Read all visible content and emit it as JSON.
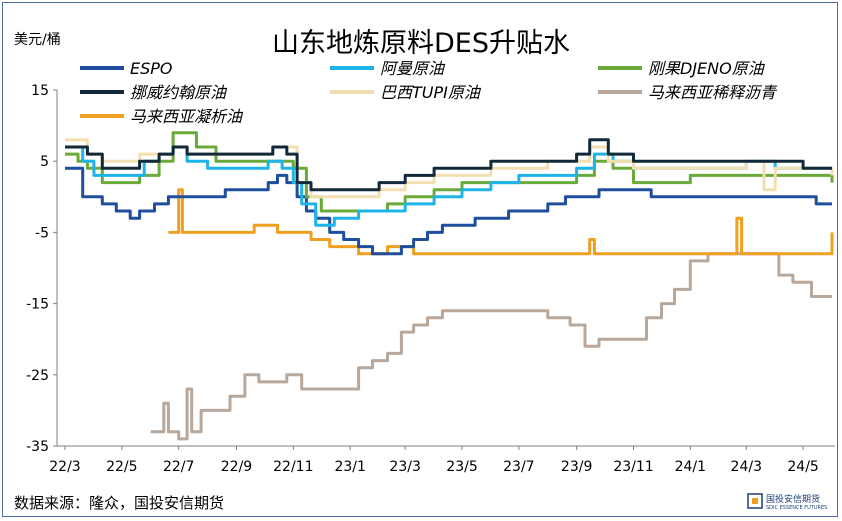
{
  "chart_data": {
    "type": "line",
    "title": "山东地炼原料DES升贴水",
    "ylabel": "美元/桶",
    "ylim": [
      -35,
      15
    ],
    "yticks": [
      15,
      5,
      -5,
      -15,
      -25,
      -35
    ],
    "xlim": [
      "2022-03",
      "2024-06"
    ],
    "xticks": [
      "22/3",
      "22/5",
      "22/7",
      "22/9",
      "22/11",
      "23/1",
      "23/3",
      "23/5",
      "23/7",
      "23/9",
      "23/11",
      "24/1",
      "24/3",
      "24/5"
    ],
    "legend_position": "top",
    "source": "数据来源：隆众，国投安信期货",
    "series": [
      {
        "name": "ESPO",
        "color": "#1f4e9e",
        "points": [
          [
            "2022-03-01",
            4
          ],
          [
            "2022-03-10",
            4
          ],
          [
            "2022-03-20",
            0
          ],
          [
            "2022-04-10",
            -1
          ],
          [
            "2022-04-25",
            -2
          ],
          [
            "2022-05-10",
            -3
          ],
          [
            "2022-05-20",
            -2
          ],
          [
            "2022-06-05",
            -1
          ],
          [
            "2022-06-20",
            0
          ],
          [
            "2022-07-10",
            0
          ],
          [
            "2022-08-01",
            0
          ],
          [
            "2022-08-20",
            1
          ],
          [
            "2022-09-15",
            1
          ],
          [
            "2022-10-05",
            2
          ],
          [
            "2022-10-15",
            3
          ],
          [
            "2022-10-25",
            2
          ],
          [
            "2022-11-05",
            0
          ],
          [
            "2022-11-15",
            -2
          ],
          [
            "2022-11-25",
            -3
          ],
          [
            "2022-12-10",
            -5
          ],
          [
            "2022-12-25",
            -6
          ],
          [
            "2023-01-10",
            -7
          ],
          [
            "2023-01-25",
            -8
          ],
          [
            "2023-02-10",
            -8
          ],
          [
            "2023-02-25",
            -7
          ],
          [
            "2023-03-10",
            -6
          ],
          [
            "2023-03-25",
            -5
          ],
          [
            "2023-04-10",
            -4
          ],
          [
            "2023-04-25",
            -4
          ],
          [
            "2023-05-15",
            -3
          ],
          [
            "2023-06-01",
            -3
          ],
          [
            "2023-06-20",
            -2
          ],
          [
            "2023-07-10",
            -2
          ],
          [
            "2023-08-01",
            -1
          ],
          [
            "2023-08-20",
            0
          ],
          [
            "2023-09-10",
            0
          ],
          [
            "2023-09-25",
            1
          ],
          [
            "2023-10-15",
            1
          ],
          [
            "2023-11-01",
            1
          ],
          [
            "2023-11-20",
            0
          ],
          [
            "2023-12-15",
            0
          ],
          [
            "2024-01-15",
            0
          ],
          [
            "2024-02-15",
            0
          ],
          [
            "2024-03-15",
            0
          ],
          [
            "2024-04-15",
            0
          ],
          [
            "2024-05-15",
            -1
          ],
          [
            "2024-06-01",
            -1
          ]
        ]
      },
      {
        "name": "阿曼原油",
        "color": "#1fb4e8",
        "points": [
          [
            "2022-03-01",
            7
          ],
          [
            "2022-03-15",
            7
          ],
          [
            "2022-03-20",
            5
          ],
          [
            "2022-04-01",
            3
          ],
          [
            "2022-04-20",
            3
          ],
          [
            "2022-05-10",
            3
          ],
          [
            "2022-05-25",
            5
          ],
          [
            "2022-06-10",
            6
          ],
          [
            "2022-06-25",
            7
          ],
          [
            "2022-07-10",
            5
          ],
          [
            "2022-08-01",
            4
          ],
          [
            "2022-08-25",
            4
          ],
          [
            "2022-09-15",
            4
          ],
          [
            "2022-10-05",
            5
          ],
          [
            "2022-10-20",
            4
          ],
          [
            "2022-11-01",
            2
          ],
          [
            "2022-11-10",
            -1
          ],
          [
            "2022-11-25",
            -4
          ],
          [
            "2022-12-15",
            -3
          ],
          [
            "2023-01-10",
            -2
          ],
          [
            "2023-02-01",
            -2
          ],
          [
            "2023-03-01",
            -1
          ],
          [
            "2023-04-01",
            0
          ],
          [
            "2023-05-01",
            1
          ],
          [
            "2023-06-01",
            2
          ],
          [
            "2023-07-01",
            3
          ],
          [
            "2023-08-01",
            3
          ],
          [
            "2023-09-01",
            4
          ],
          [
            "2023-09-20",
            6
          ],
          [
            "2023-10-10",
            5
          ],
          [
            "2023-11-01",
            4
          ],
          [
            "2023-12-01",
            4
          ],
          [
            "2024-01-01",
            4
          ],
          [
            "2024-02-01",
            4
          ],
          [
            "2024-03-01",
            5
          ],
          [
            "2024-04-01",
            4
          ],
          [
            "2024-05-01",
            4
          ],
          [
            "2024-06-01",
            4
          ]
        ]
      },
      {
        "name": "刚果DJENO原油",
        "color": "#6aaa3a",
        "points": [
          [
            "2022-03-01",
            6
          ],
          [
            "2022-03-15",
            5
          ],
          [
            "2022-03-25",
            4
          ],
          [
            "2022-04-10",
            2
          ],
          [
            "2022-05-01",
            2
          ],
          [
            "2022-05-20",
            3
          ],
          [
            "2022-06-10",
            5
          ],
          [
            "2022-06-25",
            9
          ],
          [
            "2022-07-10",
            9
          ],
          [
            "2022-07-20",
            7
          ],
          [
            "2022-08-10",
            5
          ],
          [
            "2022-09-01",
            5
          ],
          [
            "2022-09-20",
            5
          ],
          [
            "2022-10-10",
            5
          ],
          [
            "2022-11-01",
            4
          ],
          [
            "2022-11-15",
            0
          ],
          [
            "2022-12-01",
            -2
          ],
          [
            "2022-12-20",
            -2
          ],
          [
            "2023-01-15",
            -2
          ],
          [
            "2023-02-10",
            -1
          ],
          [
            "2023-03-01",
            0
          ],
          [
            "2023-04-01",
            1
          ],
          [
            "2023-05-01",
            2
          ],
          [
            "2023-06-01",
            2
          ],
          [
            "2023-07-01",
            2
          ],
          [
            "2023-08-01",
            2
          ],
          [
            "2023-09-01",
            3
          ],
          [
            "2023-09-20",
            5
          ],
          [
            "2023-10-10",
            4
          ],
          [
            "2023-11-01",
            2
          ],
          [
            "2023-12-01",
            2
          ],
          [
            "2024-01-01",
            3
          ],
          [
            "2024-02-01",
            3
          ],
          [
            "2024-03-01",
            3
          ],
          [
            "2024-04-01",
            3
          ],
          [
            "2024-05-01",
            3
          ],
          [
            "2024-06-01",
            2
          ]
        ]
      },
      {
        "name": "挪威约翰原油",
        "color": "#12293a",
        "points": [
          [
            "2022-03-01",
            7
          ],
          [
            "2022-03-15",
            7
          ],
          [
            "2022-03-25",
            6
          ],
          [
            "2022-04-10",
            4
          ],
          [
            "2022-05-01",
            4
          ],
          [
            "2022-05-20",
            5
          ],
          [
            "2022-06-10",
            6
          ],
          [
            "2022-06-25",
            7
          ],
          [
            "2022-07-10",
            6
          ],
          [
            "2022-08-10",
            6
          ],
          [
            "2022-09-01",
            6
          ],
          [
            "2022-09-20",
            6
          ],
          [
            "2022-10-10",
            7
          ],
          [
            "2022-10-25",
            6
          ],
          [
            "2022-11-05",
            2
          ],
          [
            "2022-11-20",
            1
          ],
          [
            "2022-12-10",
            1
          ],
          [
            "2023-01-10",
            1
          ],
          [
            "2023-02-01",
            2
          ],
          [
            "2023-03-01",
            3
          ],
          [
            "2023-04-01",
            4
          ],
          [
            "2023-05-01",
            4
          ],
          [
            "2023-06-01",
            5
          ],
          [
            "2023-07-01",
            5
          ],
          [
            "2023-08-01",
            5
          ],
          [
            "2023-09-01",
            6
          ],
          [
            "2023-09-15",
            8
          ],
          [
            "2023-10-05",
            6
          ],
          [
            "2023-11-01",
            5
          ],
          [
            "2023-12-01",
            5
          ],
          [
            "2024-01-01",
            5
          ],
          [
            "2024-02-01",
            5
          ],
          [
            "2024-03-01",
            5
          ],
          [
            "2024-04-01",
            5
          ],
          [
            "2024-05-01",
            4
          ],
          [
            "2024-06-01",
            4
          ]
        ]
      },
      {
        "name": "巴西TUPI原油",
        "color": "#f3dfb2",
        "points": [
          [
            "2022-03-01",
            8
          ],
          [
            "2022-03-15",
            8
          ],
          [
            "2022-03-25",
            6
          ],
          [
            "2022-04-10",
            5
          ],
          [
            "2022-05-01",
            5
          ],
          [
            "2022-05-20",
            6
          ],
          [
            "2022-06-10",
            6
          ],
          [
            "2022-06-25",
            7
          ],
          [
            "2022-07-10",
            6
          ],
          [
            "2022-08-10",
            6
          ],
          [
            "2022-09-01",
            6
          ],
          [
            "2022-09-20",
            6
          ],
          [
            "2022-10-10",
            7
          ],
          [
            "2022-10-25",
            7
          ],
          [
            "2022-11-05",
            2
          ],
          [
            "2022-11-20",
            0
          ],
          [
            "2022-12-10",
            0
          ],
          [
            "2023-01-10",
            0
          ],
          [
            "2023-02-01",
            1
          ],
          [
            "2023-03-01",
            2
          ],
          [
            "2023-04-01",
            3
          ],
          [
            "2023-05-01",
            3
          ],
          [
            "2023-06-01",
            4
          ],
          [
            "2023-07-01",
            4
          ],
          [
            "2023-08-01",
            5
          ],
          [
            "2023-09-01",
            5
          ],
          [
            "2023-09-15",
            7
          ],
          [
            "2023-10-05",
            5
          ],
          [
            "2023-11-01",
            4
          ],
          [
            "2023-12-01",
            4
          ],
          [
            "2024-01-01",
            4
          ],
          [
            "2024-02-01",
            4
          ],
          [
            "2024-03-01",
            5
          ],
          [
            "2024-03-20",
            1
          ],
          [
            "2024-04-01",
            4
          ],
          [
            "2024-05-01",
            4
          ],
          [
            "2024-06-01",
            3
          ]
        ]
      },
      {
        "name": "马来西亚稀释沥青",
        "color": "#b8a89c",
        "points": [
          [
            "2022-06-01",
            -33
          ],
          [
            "2022-06-10",
            -33
          ],
          [
            "2022-06-15",
            -29
          ],
          [
            "2022-06-20",
            -33
          ],
          [
            "2022-06-25",
            -33
          ],
          [
            "2022-07-01",
            -34
          ],
          [
            "2022-07-10",
            -27
          ],
          [
            "2022-07-15",
            -33
          ],
          [
            "2022-07-25",
            -30
          ],
          [
            "2022-08-10",
            -30
          ],
          [
            "2022-08-25",
            -28
          ],
          [
            "2022-09-10",
            -25
          ],
          [
            "2022-09-25",
            -26
          ],
          [
            "2022-10-10",
            -26
          ],
          [
            "2022-10-25",
            -25
          ],
          [
            "2022-11-10",
            -27
          ],
          [
            "2022-11-25",
            -27
          ],
          [
            "2022-12-10",
            -27
          ],
          [
            "2022-12-25",
            -27
          ],
          [
            "2023-01-10",
            -24
          ],
          [
            "2023-01-25",
            -23
          ],
          [
            "2023-02-10",
            -22
          ],
          [
            "2023-02-25",
            -19
          ],
          [
            "2023-03-10",
            -18
          ],
          [
            "2023-03-25",
            -17
          ],
          [
            "2023-04-10",
            -16
          ],
          [
            "2023-05-01",
            -16
          ],
          [
            "2023-06-01",
            -16
          ],
          [
            "2023-07-01",
            -16
          ],
          [
            "2023-08-01",
            -17
          ],
          [
            "2023-08-25",
            -18
          ],
          [
            "2023-09-10",
            -21
          ],
          [
            "2023-09-25",
            -20
          ],
          [
            "2023-10-15",
            -20
          ],
          [
            "2023-11-01",
            -20
          ],
          [
            "2023-11-15",
            -17
          ],
          [
            "2023-12-01",
            -15
          ],
          [
            "2023-12-15",
            -13
          ],
          [
            "2024-01-01",
            -9
          ],
          [
            "2024-01-20",
            -8
          ],
          [
            "2024-02-10",
            -8
          ],
          [
            "2024-03-01",
            -8
          ],
          [
            "2024-03-20",
            -8
          ],
          [
            "2024-04-05",
            -11
          ],
          [
            "2024-04-20",
            -12
          ],
          [
            "2024-05-10",
            -14
          ],
          [
            "2024-06-01",
            -14
          ]
        ]
      },
      {
        "name": "马来西亚凝析油",
        "color": "#f0a020",
        "points": [
          [
            "2022-06-20",
            -5
          ],
          [
            "2022-06-25",
            -5
          ],
          [
            "2022-07-01",
            1
          ],
          [
            "2022-07-05",
            -5
          ],
          [
            "2022-08-01",
            -5
          ],
          [
            "2022-09-01",
            -5
          ],
          [
            "2022-09-20",
            -4
          ],
          [
            "2022-10-15",
            -5
          ],
          [
            "2022-11-01",
            -5
          ],
          [
            "2022-11-20",
            -6
          ],
          [
            "2022-12-10",
            -7
          ],
          [
            "2022-12-25",
            -7
          ],
          [
            "2023-01-10",
            -8
          ],
          [
            "2023-01-25",
            -8
          ],
          [
            "2023-02-10",
            -7
          ],
          [
            "2023-02-25",
            -7
          ],
          [
            "2023-03-10",
            -8
          ],
          [
            "2023-04-01",
            -8
          ],
          [
            "2023-05-01",
            -8
          ],
          [
            "2023-06-01",
            -8
          ],
          [
            "2023-07-01",
            -8
          ],
          [
            "2023-08-01",
            -8
          ],
          [
            "2023-09-01",
            -8
          ],
          [
            "2023-09-15",
            -6
          ],
          [
            "2023-09-20",
            -8
          ],
          [
            "2023-10-15",
            -8
          ],
          [
            "2023-11-01",
            -8
          ],
          [
            "2023-12-01",
            -8
          ],
          [
            "2024-01-01",
            -8
          ],
          [
            "2024-02-01",
            -8
          ],
          [
            "2024-02-20",
            -3
          ],
          [
            "2024-02-25",
            -8
          ],
          [
            "2024-03-15",
            -8
          ],
          [
            "2024-04-01",
            -8
          ],
          [
            "2024-05-01",
            -8
          ],
          [
            "2024-05-20",
            -8
          ],
          [
            "2024-06-01",
            -5
          ]
        ]
      }
    ]
  },
  "logo": {
    "name": "国投安信期货",
    "sub": "SDIC ESSENCE FUTURES"
  }
}
